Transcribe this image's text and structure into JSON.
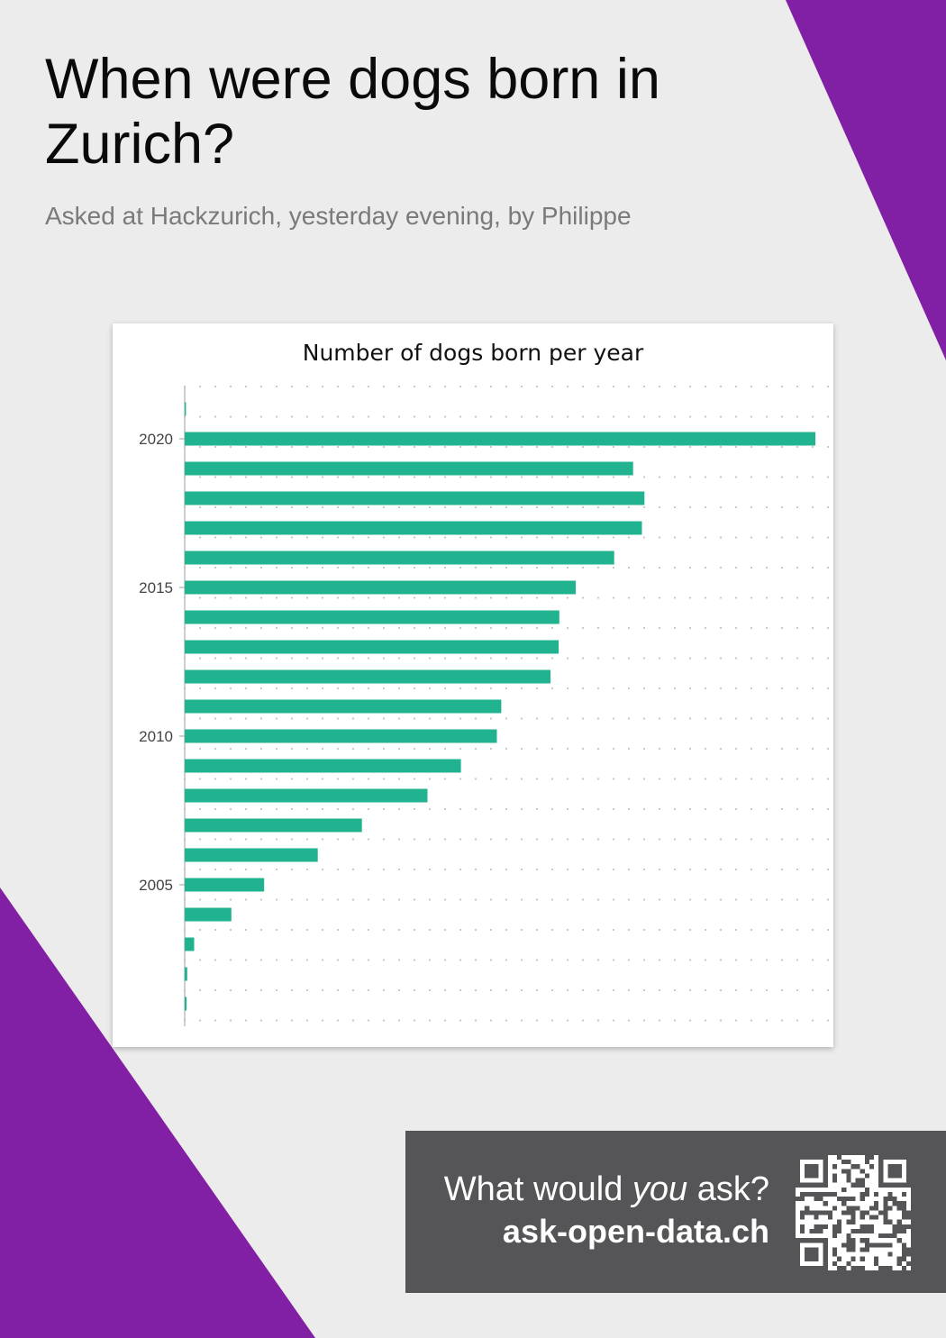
{
  "header": {
    "title": "When were dogs born in Zurich?",
    "subtitle": "Asked at Hackzurich, yesterday evening, by Philippe"
  },
  "colors": {
    "background": "#ececec",
    "accent_purple": "#8120a4",
    "bar": "#21b38f",
    "cta_background": "#555557"
  },
  "chart_data": {
    "type": "bar",
    "orientation": "horizontal",
    "title": "Number of dogs born per year",
    "xlabel": "",
    "ylabel": "",
    "categories": [
      2001,
      2002,
      2003,
      2004,
      2005,
      2006,
      2007,
      2008,
      2009,
      2010,
      2011,
      2012,
      2013,
      2014,
      2015,
      2016,
      2017,
      2018,
      2019,
      2020,
      2021
    ],
    "values": [
      3,
      4,
      15,
      74,
      126,
      211,
      281,
      385,
      438,
      495,
      502,
      580,
      593,
      594,
      620,
      681,
      725,
      729,
      711,
      1000,
      2
    ],
    "y_ticks": [
      2005,
      2010,
      2015,
      2020
    ],
    "xlim": [
      0,
      1000
    ],
    "x_axis_labels_shown": false,
    "grid": "dotted"
  },
  "cta": {
    "question_prefix": "What would ",
    "question_emphasis": "you",
    "question_suffix": " ask?",
    "url": "ask-open-data.ch",
    "qr_icon": "qr-code-icon"
  }
}
